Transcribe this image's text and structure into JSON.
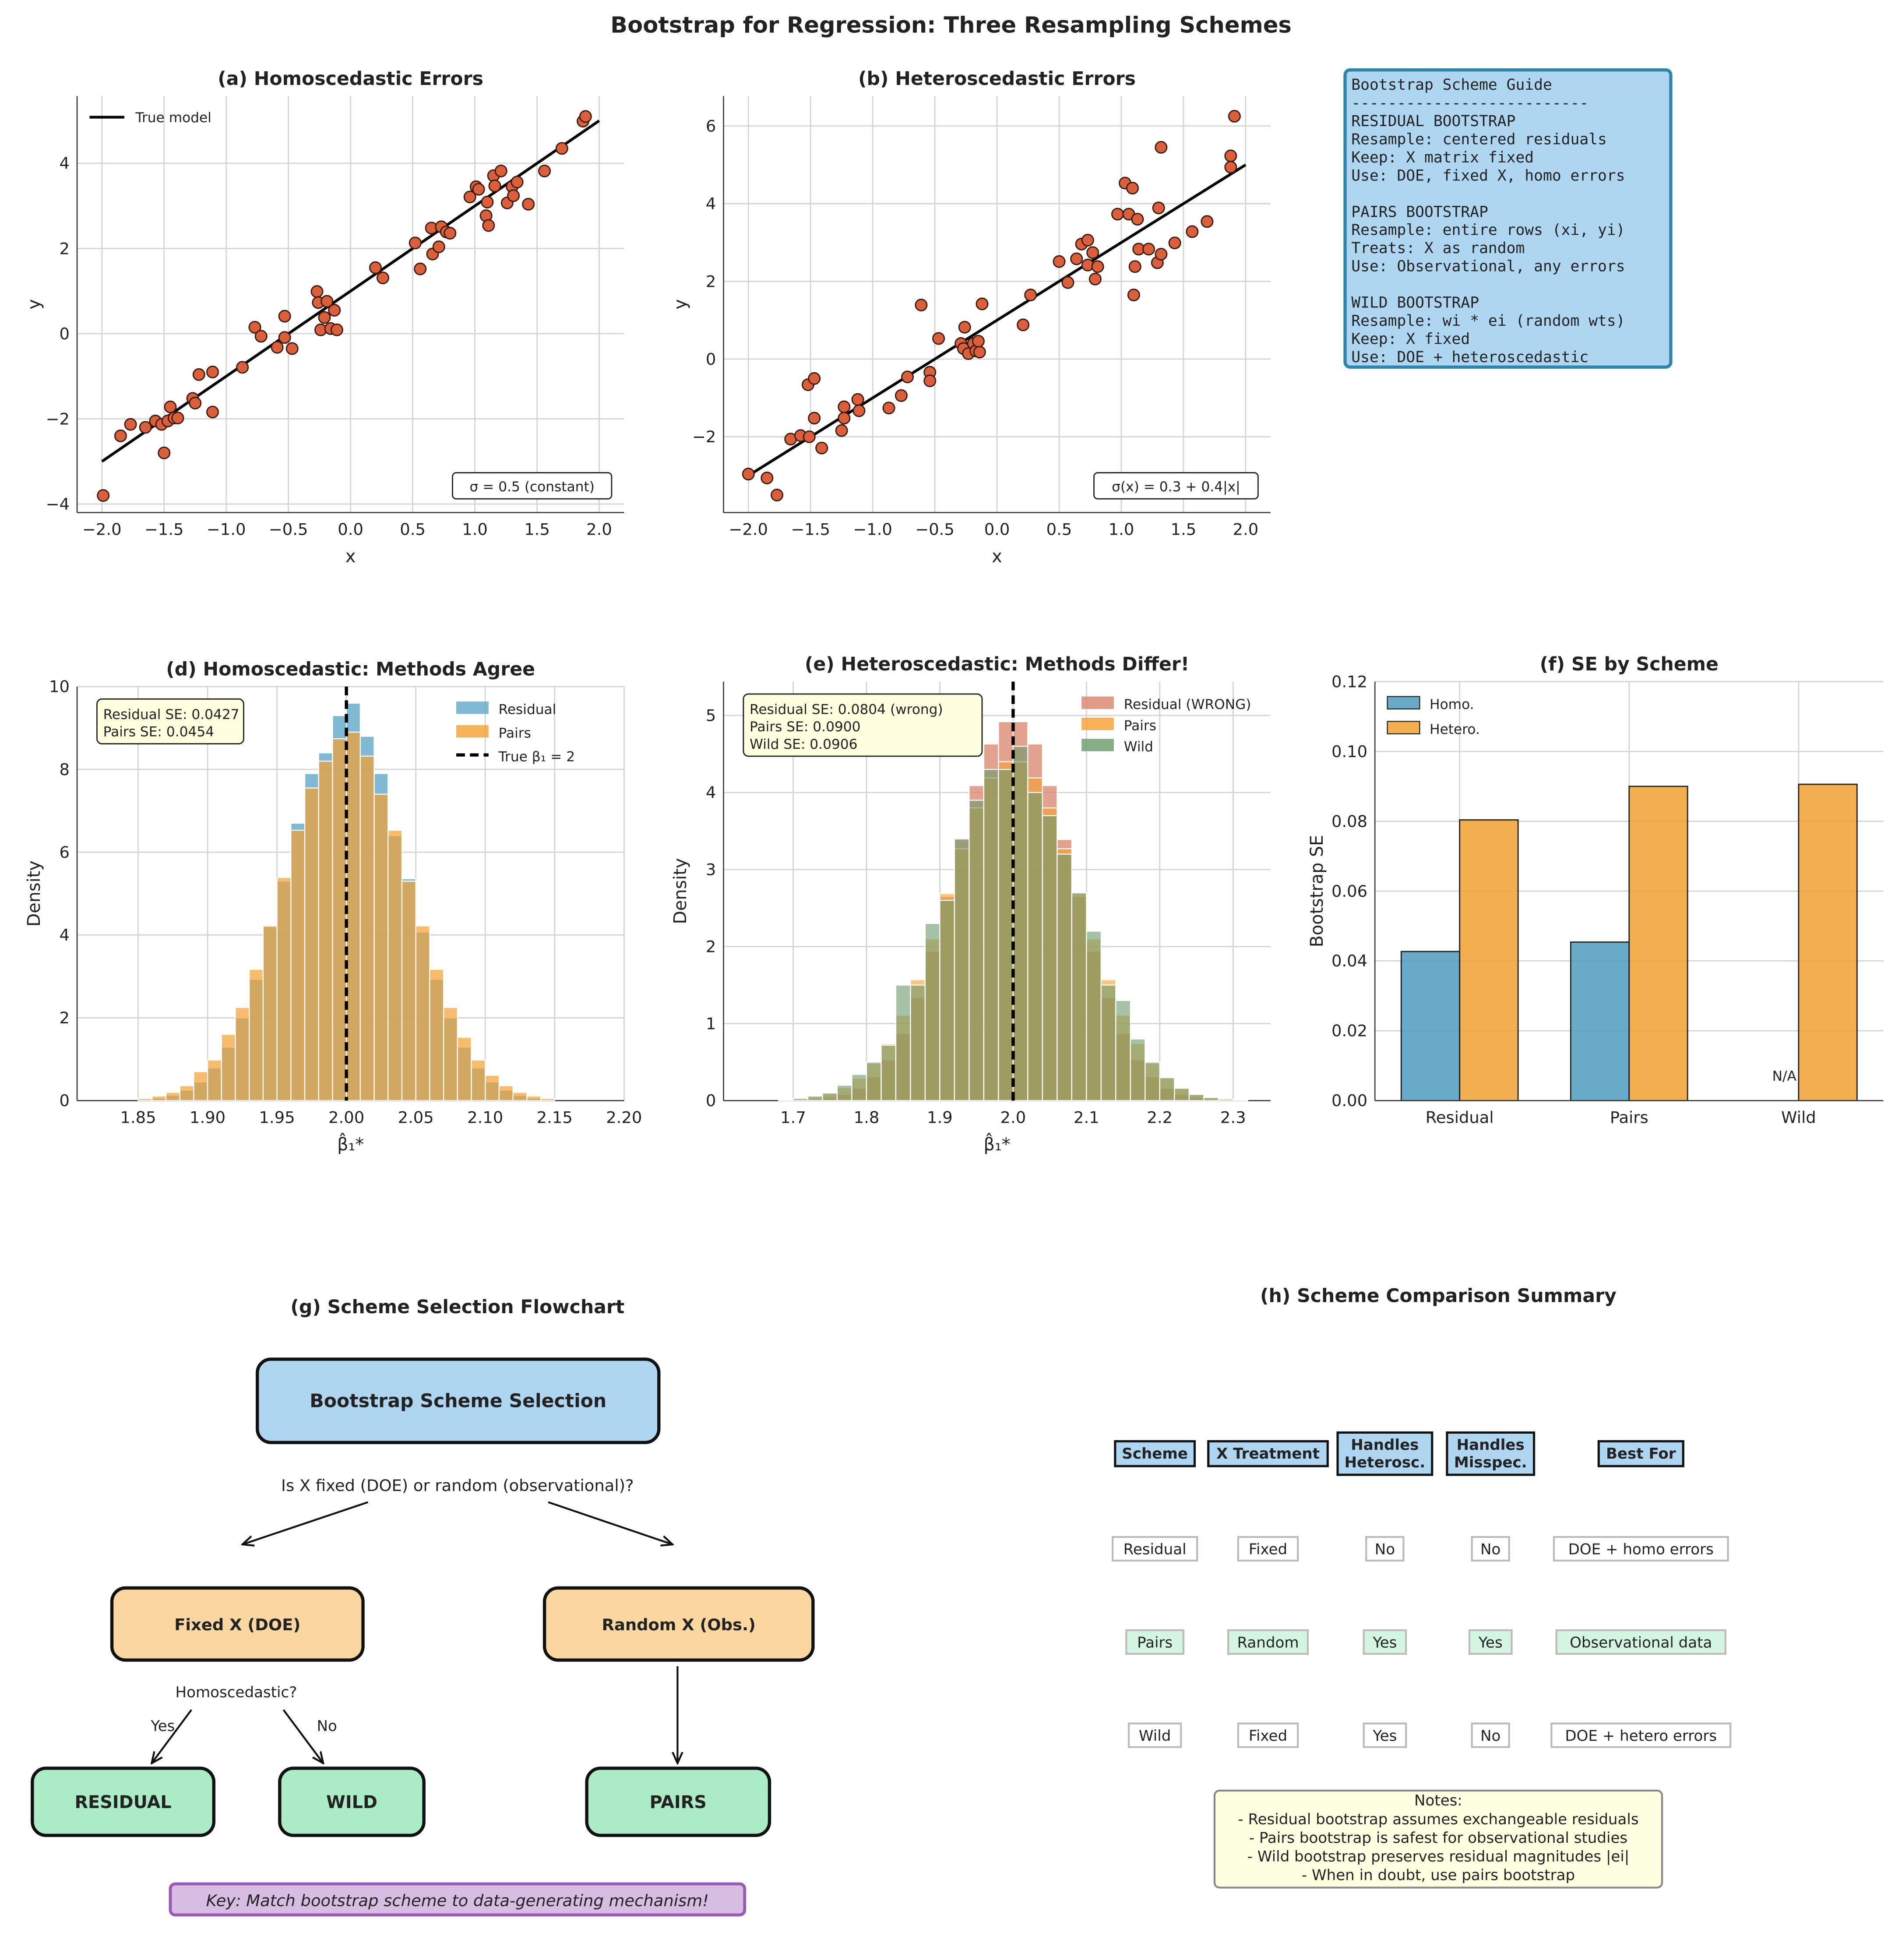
{
  "figure": {
    "title": "Bootstrap for Regression: Three Resampling Schemes"
  },
  "chart_data": [
    {
      "type": "scatter",
      "title": "(a) Homoscedastic Errors",
      "xlabel": "x",
      "ylabel": "y",
      "xlim": [
        -2.2,
        2.2
      ],
      "ylim": [
        -4.2,
        5.58
      ],
      "xticks": [
        -2.0,
        -1.5,
        -1.0,
        -0.5,
        0.0,
        0.5,
        1.0,
        1.5,
        2.0
      ],
      "xtick_labels": [
        "−2.0",
        "−1.5",
        "−1.0",
        "−0.5",
        "0.0",
        "0.5",
        "1.0",
        "1.5",
        "2.0"
      ],
      "yticks": [
        -4,
        -2,
        0,
        2,
        4
      ],
      "ytick_labels": [
        "−4",
        "−2",
        "0",
        "2",
        "4"
      ],
      "grid": true,
      "legend": {
        "position": "top-left",
        "entries": [
          "True model"
        ]
      },
      "annotation": "σ = 0.5 (constant)",
      "true_line": [
        [
          -2,
          -3
        ],
        [
          2,
          5
        ]
      ],
      "points": [
        [
          -1.99,
          -3.8
        ],
        [
          -1.85,
          -2.4
        ],
        [
          -1.77,
          -2.13
        ],
        [
          -1.65,
          -2.2
        ],
        [
          -1.57,
          -2.05
        ],
        [
          -1.52,
          -2.13
        ],
        [
          -1.5,
          -2.8
        ],
        [
          -1.47,
          -2.05
        ],
        [
          -1.45,
          -1.72
        ],
        [
          -1.42,
          -1.98
        ],
        [
          -1.39,
          -1.98
        ],
        [
          -1.27,
          -1.52
        ],
        [
          -1.25,
          -1.63
        ],
        [
          -1.22,
          -0.96
        ],
        [
          -1.11,
          -0.9
        ],
        [
          -1.11,
          -1.84
        ],
        [
          -0.87,
          -0.79
        ],
        [
          -0.77,
          0.15
        ],
        [
          -0.72,
          -0.06
        ],
        [
          -0.59,
          -0.32
        ],
        [
          -0.53,
          0.41
        ],
        [
          -0.53,
          -0.09
        ],
        [
          -0.47,
          -0.35
        ],
        [
          -0.27,
          0.99
        ],
        [
          -0.26,
          0.73
        ],
        [
          -0.24,
          0.09
        ],
        [
          -0.21,
          0.38
        ],
        [
          -0.19,
          0.76
        ],
        [
          -0.16,
          0.12
        ],
        [
          -0.13,
          0.55
        ],
        [
          -0.11,
          0.09
        ],
        [
          0.2,
          1.55
        ],
        [
          0.26,
          1.31
        ],
        [
          0.52,
          2.13
        ],
        [
          0.56,
          1.52
        ],
        [
          0.65,
          2.48
        ],
        [
          0.66,
          1.87
        ],
        [
          0.71,
          2.04
        ],
        [
          0.73,
          2.51
        ],
        [
          0.77,
          2.39
        ],
        [
          0.8,
          2.36
        ],
        [
          0.96,
          3.21
        ],
        [
          1.01,
          3.45
        ],
        [
          1.03,
          3.39
        ],
        [
          1.09,
          2.77
        ],
        [
          1.1,
          3.09
        ],
        [
          1.11,
          2.54
        ],
        [
          1.15,
          3.71
        ],
        [
          1.16,
          3.47
        ],
        [
          1.21,
          3.82
        ],
        [
          1.26,
          3.07
        ],
        [
          1.3,
          3.45
        ],
        [
          1.31,
          3.24
        ],
        [
          1.34,
          3.56
        ],
        [
          1.43,
          3.04
        ],
        [
          1.56,
          3.82
        ],
        [
          1.7,
          4.35
        ],
        [
          1.87,
          4.99
        ],
        [
          1.89,
          5.1
        ]
      ]
    },
    {
      "type": "scatter",
      "title": "(b) Heteroscedastic Errors",
      "xlabel": "x",
      "ylabel": "y",
      "xlim": [
        -2.2,
        2.2
      ],
      "ylim": [
        -3.95,
        6.77
      ],
      "xticks": [
        -2.0,
        -1.5,
        -1.0,
        -0.5,
        0.0,
        0.5,
        1.0,
        1.5,
        2.0
      ],
      "xtick_labels": [
        "−2.0",
        "−1.5",
        "−1.0",
        "−0.5",
        "0.0",
        "0.5",
        "1.0",
        "1.5",
        "2.0"
      ],
      "yticks": [
        -2,
        0,
        2,
        4,
        6
      ],
      "ytick_labels": [
        "−2",
        "0",
        "2",
        "4",
        "6"
      ],
      "grid": true,
      "annotation": "σ(x) = 0.3 + 0.4|x|",
      "true_line": [
        [
          -2,
          -3
        ],
        [
          2,
          5
        ]
      ],
      "points": [
        [
          -2.0,
          -2.96
        ],
        [
          -1.85,
          -3.06
        ],
        [
          -1.77,
          -3.5
        ],
        [
          -1.66,
          -2.06
        ],
        [
          -1.58,
          -1.97
        ],
        [
          -1.52,
          -0.66
        ],
        [
          -1.47,
          -0.5
        ],
        [
          -1.51,
          -2.0
        ],
        [
          -1.47,
          -1.52
        ],
        [
          -1.41,
          -2.29
        ],
        [
          -1.25,
          -1.84
        ],
        [
          -1.23,
          -1.23
        ],
        [
          -1.23,
          -1.52
        ],
        [
          -1.12,
          -1.04
        ],
        [
          -1.11,
          -1.33
        ],
        [
          -0.87,
          -1.26
        ],
        [
          -0.77,
          -0.94
        ],
        [
          -0.72,
          -0.46
        ],
        [
          -0.61,
          1.39
        ],
        [
          -0.54,
          -0.34
        ],
        [
          -0.54,
          -0.56
        ],
        [
          -0.47,
          0.53
        ],
        [
          -0.26,
          0.82
        ],
        [
          -0.29,
          0.4
        ],
        [
          -0.27,
          0.27
        ],
        [
          -0.23,
          0.14
        ],
        [
          -0.19,
          0.4
        ],
        [
          -0.17,
          0.21
        ],
        [
          -0.14,
          0.18
        ],
        [
          -0.15,
          0.46
        ],
        [
          -0.12,
          1.42
        ],
        [
          0.21,
          0.88
        ],
        [
          0.27,
          1.65
        ],
        [
          0.5,
          2.51
        ],
        [
          0.57,
          1.97
        ],
        [
          0.64,
          2.58
        ],
        [
          0.68,
          2.96
        ],
        [
          0.73,
          3.06
        ],
        [
          0.73,
          2.42
        ],
        [
          0.77,
          2.74
        ],
        [
          0.79,
          2.06
        ],
        [
          0.81,
          2.38
        ],
        [
          0.97,
          3.73
        ],
        [
          1.03,
          4.53
        ],
        [
          1.06,
          3.73
        ],
        [
          1.09,
          4.4
        ],
        [
          1.1,
          1.65
        ],
        [
          1.11,
          2.38
        ],
        [
          1.13,
          3.6
        ],
        [
          1.14,
          2.83
        ],
        [
          1.22,
          2.83
        ],
        [
          1.29,
          2.48
        ],
        [
          1.3,
          3.89
        ],
        [
          1.32,
          2.7
        ],
        [
          1.32,
          5.45
        ],
        [
          1.43,
          2.99
        ],
        [
          1.57,
          3.28
        ],
        [
          1.69,
          3.54
        ],
        [
          1.88,
          5.23
        ],
        [
          1.88,
          4.94
        ],
        [
          1.91,
          6.25
        ]
      ]
    },
    {
      "type": "histogram",
      "title": "(d) Homoscedastic: Methods Agree",
      "xlabel": "β̂₁*",
      "ylabel": "Density",
      "xlim": [
        1.806,
        2.2
      ],
      "ylim": [
        0,
        10
      ],
      "xticks": [
        1.85,
        1.9,
        1.95,
        2.0,
        2.05,
        2.1,
        2.15,
        2.2
      ],
      "xtick_labels": [
        "1.85",
        "1.90",
        "1.95",
        "2.00",
        "2.05",
        "2.10",
        "2.15",
        "2.20"
      ],
      "yticks": [
        0,
        2,
        4,
        6,
        8,
        10
      ],
      "ytick_labels": [
        "0",
        "2",
        "4",
        "6",
        "8",
        "10"
      ],
      "grid": true,
      "bin_start": 1.85,
      "bin_width": 0.01,
      "reference_line": {
        "x": 2.0,
        "label": "True β₁ = 2"
      },
      "legend": {
        "position": "top-right"
      },
      "annotation": [
        "Residual SE: 0.0427",
        "Pairs SE: 0.0454"
      ],
      "series": [
        {
          "name": "Residual",
          "color": "#5fa8c8",
          "values": [
            0.03,
            0.06,
            0.13,
            0.25,
            0.45,
            0.79,
            1.29,
            2.0,
            2.93,
            4.2,
            5.3,
            6.7,
            7.9,
            8.4,
            9.3,
            9.6,
            8.8,
            7.9,
            6.4,
            5.36,
            4.07,
            2.93,
            2.0,
            1.29,
            0.79,
            0.45,
            0.25,
            0.13,
            0.06,
            0.03
          ]
        },
        {
          "name": "Pairs",
          "color": "#f5a030",
          "values": [
            0.05,
            0.11,
            0.2,
            0.36,
            0.7,
            0.98,
            1.6,
            2.25,
            3.17,
            4.22,
            5.39,
            6.53,
            7.55,
            8.2,
            8.74,
            8.9,
            8.32,
            7.4,
            6.53,
            5.3,
            4.22,
            3.17,
            2.25,
            1.53,
            0.98,
            0.61,
            0.36,
            0.2,
            0.11,
            0.05
          ]
        }
      ]
    },
    {
      "type": "histogram",
      "title": "(e) Heteroscedastic: Methods Differ!",
      "xlabel": "β̂₁*",
      "ylabel": "Density",
      "xlim": [
        1.605,
        2.351
      ],
      "ylim": [
        0,
        5.44
      ],
      "xticks": [
        1.7,
        1.8,
        1.9,
        2.0,
        2.1,
        2.2,
        2.3
      ],
      "xtick_labels": [
        "1.7",
        "1.8",
        "1.9",
        "2.0",
        "2.1",
        "2.2",
        "2.3"
      ],
      "yticks": [
        0,
        1,
        2,
        3,
        4,
        5
      ],
      "ytick_labels": [
        "0",
        "1",
        "2",
        "3",
        "4",
        "5"
      ],
      "grid": true,
      "bin_start": 1.66,
      "bin_width": 0.02,
      "reference_line": {
        "x": 2.0
      },
      "legend": {
        "position": "top-right"
      },
      "annotation": [
        "Residual SE: 0.0804 (wrong)",
        "Pairs SE: 0.0900",
        "Wild SE: 0.0906"
      ],
      "series": [
        {
          "name": "Residual (WRONG)",
          "color": "#d9826a",
          "values": [
            0.0,
            0.0,
            0.01,
            0.02,
            0.04,
            0.08,
            0.16,
            0.31,
            0.53,
            0.87,
            1.34,
            1.94,
            2.65,
            3.39,
            4.09,
            4.63,
            4.92,
            4.92,
            4.63,
            4.09,
            3.39,
            2.65,
            1.94,
            1.34,
            0.87,
            0.53,
            0.31,
            0.16,
            0.08,
            0.04,
            0.02,
            0.01,
            0.0
          ]
        },
        {
          "name": "Pairs",
          "color": "#f5a030",
          "values": [
            0.0,
            0.01,
            0.02,
            0.05,
            0.09,
            0.17,
            0.29,
            0.48,
            0.74,
            1.11,
            1.57,
            2.1,
            2.69,
            3.27,
            3.8,
            4.19,
            4.4,
            4.4,
            4.19,
            3.8,
            3.27,
            2.69,
            2.1,
            1.57,
            1.11,
            0.74,
            0.48,
            0.29,
            0.17,
            0.09,
            0.05,
            0.02,
            0.01
          ]
        },
        {
          "name": "Wild",
          "color": "#6a9a6a",
          "values": [
            0.0,
            0.01,
            0.03,
            0.06,
            0.1,
            0.2,
            0.34,
            0.5,
            0.72,
            1.5,
            1.5,
            2.3,
            2.6,
            3.4,
            3.9,
            4.3,
            4.3,
            4.6,
            4.0,
            3.7,
            3.2,
            2.7,
            2.2,
            1.5,
            1.3,
            0.8,
            0.5,
            0.3,
            0.16,
            0.08,
            0.04,
            0.02,
            0.01
          ]
        }
      ]
    },
    {
      "type": "bar",
      "title": "(f) SE by Scheme",
      "xlabel": "",
      "ylabel": "Bootstrap SE",
      "ylim": [
        0,
        0.12
      ],
      "yticks": [
        0,
        0.02,
        0.04,
        0.06,
        0.08,
        0.1,
        0.12
      ],
      "ytick_labels": [
        "0.00",
        "0.02",
        "0.04",
        "0.06",
        "0.08",
        "0.10",
        "0.12"
      ],
      "grid": true,
      "categories": [
        "Residual",
        "Pairs",
        "Wild"
      ],
      "legend": {
        "position": "top-left"
      },
      "missing_label": "N/A",
      "series": [
        {
          "name": "Homo.",
          "color": "#4f9bbf",
          "values": [
            0.0427,
            0.0454,
            null
          ]
        },
        {
          "name": "Hetero.",
          "color": "#f0a030",
          "values": [
            0.0804,
            0.09,
            0.0906
          ]
        }
      ]
    }
  ],
  "guide": {
    "lines": [
      "Bootstrap Scheme Guide",
      "--------------------------",
      "RESIDUAL BOOTSTRAP",
      "  Resample: centered residuals",
      "  Keep: X matrix fixed",
      "  Use: DOE, fixed X, homo errors",
      "",
      "PAIRS BOOTSTRAP",
      "  Resample: entire rows (xi, yi)",
      "  Treats: X as random",
      "  Use: Observational, any errors",
      "",
      "WILD BOOTSTRAP",
      "  Resample: wi * ei (random wts)",
      "  Keep: X fixed",
      "  Use: DOE + heteroscedastic"
    ]
  },
  "flowchart": {
    "title": "(g) Scheme Selection Flowchart",
    "root": "Bootstrap Scheme Selection",
    "question": "Is X fixed (DOE) or random (observational)?",
    "fixed": "Fixed X (DOE)",
    "random": "Random X (Obs.)",
    "homo_question": "Homoscedastic?",
    "yes": "Yes",
    "no": "No",
    "residual": "RESIDUAL",
    "wild": "WILD",
    "pairs": "PAIRS",
    "key": "Key: Match bootstrap scheme to data-generating mechanism!"
  },
  "summary": {
    "title": "(h) Scheme Comparison Summary",
    "headers": [
      [
        "Scheme"
      ],
      [
        "X Treatment"
      ],
      [
        "Handles",
        "Heterosc."
      ],
      [
        "Handles",
        "Misspec."
      ],
      [
        "Best For"
      ]
    ],
    "rows": [
      [
        "Residual",
        "Fixed",
        "No",
        "No",
        "DOE + homo errors"
      ],
      [
        "Pairs",
        "Random",
        "Yes",
        "Yes",
        "Observational data"
      ],
      [
        "Wild",
        "Fixed",
        "Yes",
        "No",
        "DOE + hetero errors"
      ]
    ],
    "notes": [
      "Notes:",
      "- Residual bootstrap assumes exchangeable residuals",
      "- Pairs bootstrap is safest for observational studies",
      "- Wild bootstrap preserves residual magnitudes |ei|",
      "- When in doubt, use pairs bootstrap"
    ]
  }
}
